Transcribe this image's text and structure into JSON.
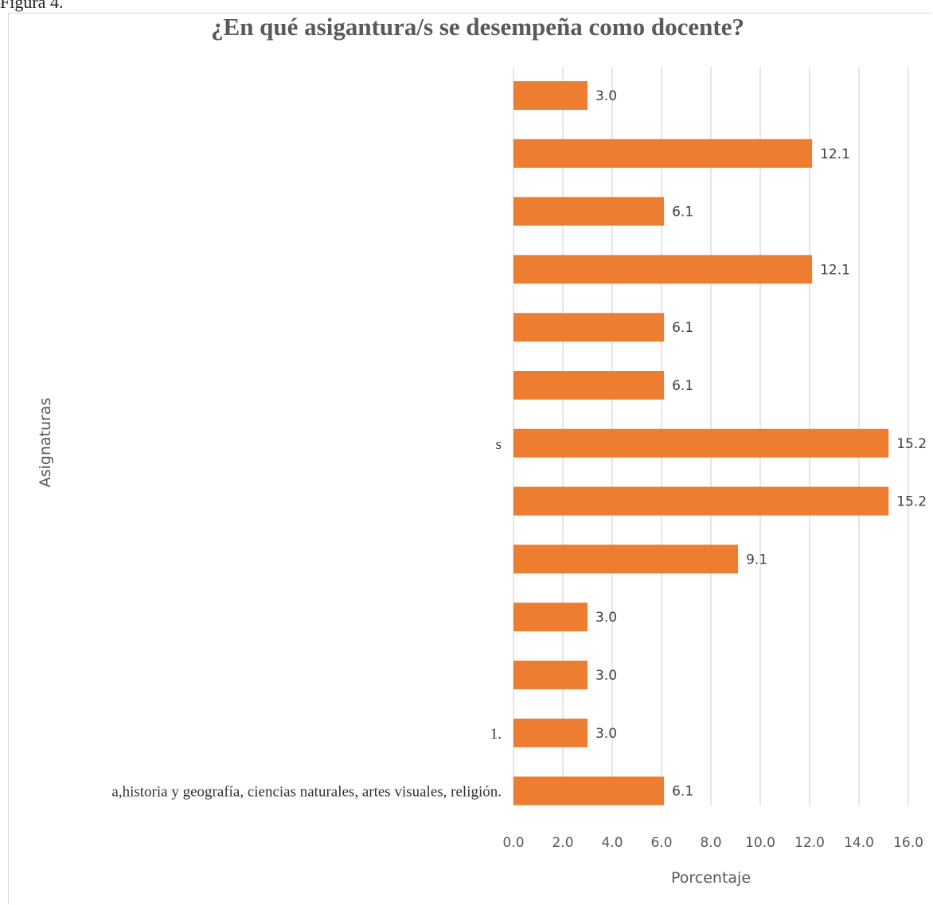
{
  "page": {
    "header_text": "Figura 4."
  },
  "chart_data": {
    "type": "bar",
    "orientation": "horizontal",
    "title": "¿En qué asigantura/s se desempeña como docente?",
    "xlabel": "Porcentaje",
    "ylabel": "Asignaturas",
    "xlim": [
      0,
      16
    ],
    "xticks": [
      "0.0",
      "2.0",
      "4.0",
      "6.0",
      "8.0",
      "10.0",
      "12.0",
      "14.0",
      "16.0"
    ],
    "grid": "vertical",
    "legend": "none",
    "bar_color": "#ED7D31",
    "grid_color": "#D9D9D9",
    "categories": [
      "",
      "",
      "",
      "",
      "",
      "",
      "s",
      "",
      "",
      "",
      "",
      "1.",
      "a,historia y geografía, ciencias naturales, artes visuales, religión."
    ],
    "values": [
      3.0,
      12.1,
      6.1,
      12.1,
      6.1,
      6.1,
      15.2,
      15.2,
      9.1,
      3.0,
      3.0,
      3.0,
      6.1
    ],
    "data_labels": [
      "3.0",
      "12.1",
      "6.1",
      "12.1",
      "6.1",
      "6.1",
      "15.2",
      "15.2",
      "9.1",
      "3.0",
      "3.0",
      "3.0",
      "6.1"
    ]
  }
}
